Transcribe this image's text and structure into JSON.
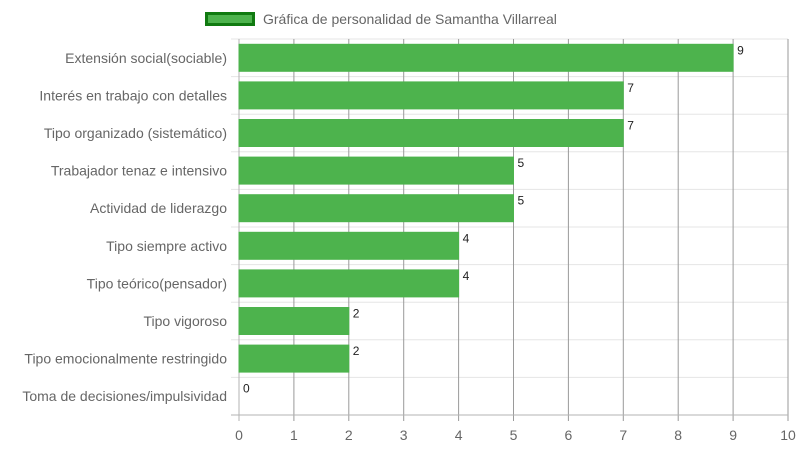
{
  "chart_data": {
    "type": "bar",
    "orientation": "horizontal",
    "categories": [
      "Extensión social(sociable)",
      "Interés en trabajo con detalles",
      "Tipo organizado (sistemático)",
      "Trabajador tenaz e intensivo",
      "Actividad de liderazgo",
      "Tipo siempre activo",
      "Tipo teórico(pensador)",
      "Tipo vigoroso",
      "Tipo emocionalmente restringido",
      "Toma de decisiones/impulsividad"
    ],
    "series": [
      {
        "name": "Gráfica de personalidad de Samantha Villarreal",
        "values": [
          9,
          7,
          7,
          5,
          5,
          4,
          4,
          2,
          2,
          0
        ]
      }
    ],
    "x_ticks": [
      "0",
      "1",
      "2",
      "3",
      "4",
      "5",
      "6",
      "7",
      "8",
      "9",
      "10"
    ],
    "xlim": [
      0,
      10
    ],
    "title": "",
    "xlabel": "",
    "ylabel": "",
    "grid": true,
    "legend_position": "top-center",
    "bar_color": "#4db34d",
    "bar_border_color": "#107a10"
  }
}
